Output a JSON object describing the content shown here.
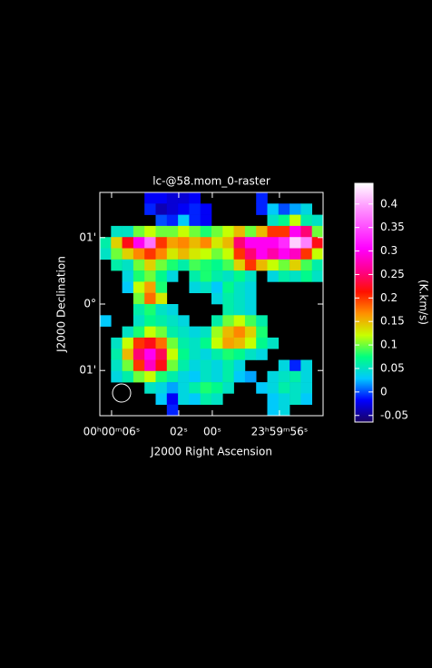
{
  "chart_data": {
    "type": "heatmap",
    "title": "lc-@58.mom_0-raster",
    "xlabel": "J2000 Right Ascension",
    "ylabel": "J2000 Declination",
    "colorbar_label": "(K.km/s)",
    "xlim": [
      6.7,
      -6.6
    ],
    "xticks": [
      {
        "value": 6,
        "label": "00ʰ00ᵐ06ˢ"
      },
      {
        "value": 2,
        "label": "02ˢ"
      },
      {
        "value": 0,
        "label": "00ˢ"
      },
      {
        "value": -4,
        "label": "23ʰ59ᵐ56ˢ"
      }
    ],
    "ylim": [
      -1.68,
      1.68
    ],
    "yticks": [
      {
        "value": 1,
        "label": "01'"
      },
      {
        "value": 0,
        "label": "0°"
      },
      {
        "value": -1,
        "label": "01'"
      }
    ],
    "clim": [
      -0.064,
      0.444
    ],
    "cticks": [
      -0.05,
      0,
      0.05,
      0.1,
      0.15,
      0.2,
      0.25,
      0.3,
      0.35,
      0.4
    ],
    "colormap": [
      "#1a0060",
      "#0000ff",
      "#00c8ff",
      "#00ff80",
      "#c8ff00",
      "#ff9000",
      "#ff1000",
      "#ff0090",
      "#ff00ff",
      "#ff50ff",
      "#ffa0ff",
      "#ffffff"
    ],
    "values": [
      [
        null,
        null,
        null,
        null,
        -0.02,
        -0.02,
        -0.03,
        -0.03,
        -0.02,
        null,
        null,
        null,
        null,
        null,
        -0.01,
        null,
        null,
        null,
        null,
        null
      ],
      [
        null,
        null,
        null,
        null,
        -0.01,
        -0.04,
        -0.03,
        -0.02,
        -0.01,
        -0.02,
        null,
        null,
        null,
        null,
        -0.01,
        0.03,
        0.0,
        0.02,
        0.04,
        null
      ],
      [
        null,
        null,
        null,
        null,
        null,
        0.0,
        -0.01,
        0.03,
        -0.01,
        -0.02,
        null,
        null,
        null,
        null,
        null,
        0.05,
        0.07,
        0.12,
        0.06,
        0.05
      ],
      [
        null,
        0.05,
        0.05,
        0.1,
        0.12,
        0.1,
        0.1,
        0.12,
        0.1,
        0.08,
        0.1,
        0.12,
        0.15,
        0.1,
        0.15,
        0.2,
        0.2,
        0.3,
        0.25,
        0.1
      ],
      [
        0.06,
        0.14,
        0.22,
        0.3,
        0.37,
        0.2,
        0.16,
        0.17,
        0.15,
        0.17,
        0.13,
        0.15,
        0.25,
        0.3,
        0.3,
        0.3,
        0.33,
        0.42,
        0.38,
        0.22
      ],
      [
        0.05,
        0.1,
        0.14,
        0.17,
        0.2,
        0.17,
        0.13,
        0.15,
        0.13,
        0.12,
        0.1,
        0.12,
        0.2,
        0.25,
        0.3,
        0.27,
        0.3,
        0.28,
        0.2,
        0.12
      ],
      [
        null,
        0.06,
        0.05,
        0.1,
        0.14,
        0.1,
        0.08,
        0.06,
        0.09,
        0.08,
        0.07,
        0.09,
        0.14,
        0.2,
        0.15,
        0.12,
        0.1,
        0.14,
        0.09,
        0.06
      ],
      [
        null,
        null,
        0.04,
        0.08,
        0.1,
        0.07,
        0.04,
        null,
        0.06,
        0.08,
        0.06,
        0.05,
        0.07,
        0.05,
        null,
        0.04,
        0.06,
        0.05,
        0.07,
        0.05
      ],
      [
        null,
        null,
        0.03,
        0.12,
        0.16,
        0.08,
        null,
        null,
        0.04,
        0.05,
        0.03,
        0.07,
        0.05,
        0.04,
        null,
        null,
        null,
        null,
        null,
        null
      ],
      [
        null,
        null,
        null,
        0.1,
        0.18,
        0.13,
        null,
        null,
        null,
        null,
        0.04,
        0.06,
        0.05,
        0.04,
        null,
        null,
        null,
        null,
        null,
        null
      ],
      [
        null,
        null,
        null,
        0.06,
        0.08,
        0.05,
        0.04,
        null,
        null,
        null,
        null,
        0.06,
        0.05,
        0.04,
        null,
        null,
        null,
        null,
        null,
        null
      ],
      [
        0.03,
        null,
        null,
        0.05,
        0.07,
        0.06,
        0.05,
        0.04,
        null,
        null,
        0.06,
        0.1,
        0.12,
        0.09,
        0.06,
        null,
        null,
        null,
        null,
        null
      ],
      [
        null,
        null,
        0.05,
        0.08,
        0.12,
        0.1,
        0.06,
        0.05,
        0.04,
        0.05,
        0.11,
        0.15,
        0.17,
        0.14,
        0.08,
        null,
        null,
        null,
        null,
        null
      ],
      [
        null,
        0.05,
        0.12,
        0.2,
        0.22,
        0.18,
        0.1,
        0.06,
        0.05,
        0.07,
        0.12,
        0.16,
        0.15,
        0.12,
        0.07,
        0.05,
        null,
        null,
        null,
        null
      ],
      [
        null,
        0.06,
        0.15,
        0.25,
        0.3,
        0.24,
        0.12,
        0.07,
        0.05,
        0.04,
        0.06,
        0.08,
        0.07,
        0.05,
        0.04,
        null,
        null,
        null,
        null,
        null
      ],
      [
        null,
        0.05,
        0.1,
        0.2,
        0.28,
        0.22,
        0.1,
        0.06,
        0.04,
        0.05,
        0.04,
        0.06,
        0.04,
        null,
        null,
        null,
        0.04,
        -0.01,
        0.04,
        null
      ],
      [
        null,
        0.04,
        0.06,
        0.1,
        0.12,
        0.08,
        0.06,
        0.04,
        0.03,
        0.05,
        0.04,
        0.06,
        0.03,
        0.02,
        null,
        0.04,
        0.05,
        0.06,
        0.04,
        null
      ],
      [
        null,
        null,
        null,
        null,
        0.05,
        0.04,
        0.02,
        0.04,
        0.06,
        0.08,
        0.07,
        0.05,
        null,
        null,
        0.03,
        0.04,
        0.06,
        0.05,
        0.04,
        null
      ],
      [
        null,
        null,
        null,
        null,
        null,
        0.03,
        -0.02,
        0.04,
        0.03,
        0.06,
        0.05,
        null,
        null,
        null,
        null,
        0.03,
        0.04,
        0.05,
        0.03,
        null
      ],
      [
        null,
        null,
        null,
        null,
        null,
        null,
        -0.01,
        null,
        null,
        null,
        null,
        null,
        null,
        null,
        null,
        0.03,
        0.04,
        null,
        null,
        null
      ]
    ]
  }
}
